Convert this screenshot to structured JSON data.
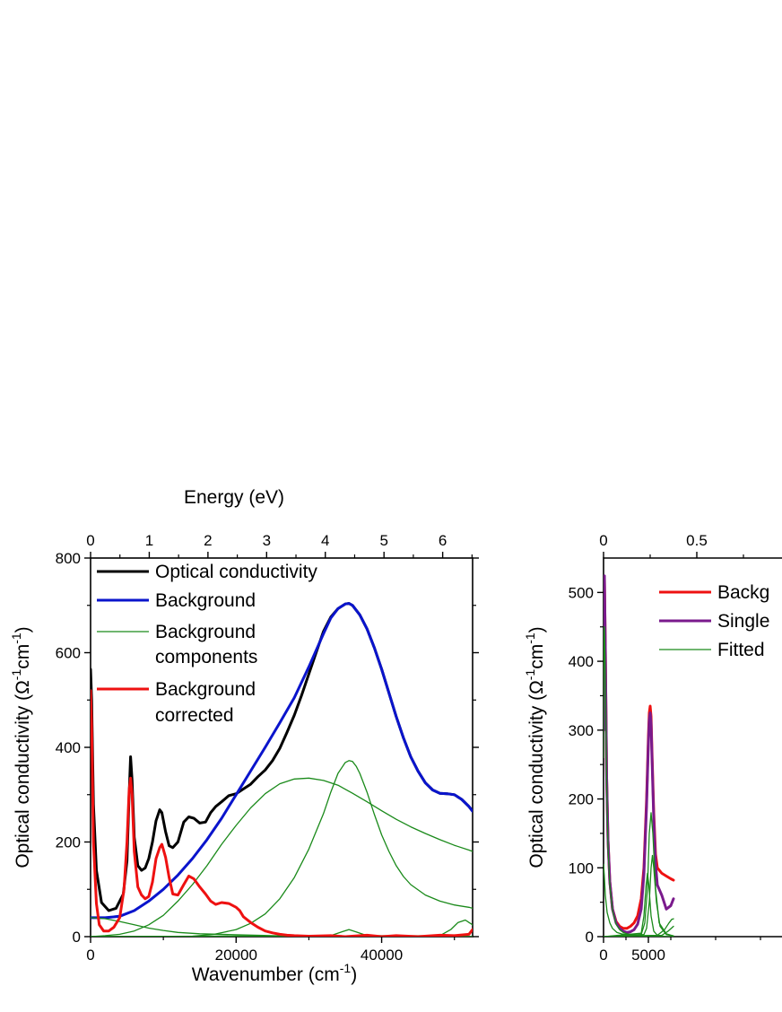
{
  "colors": {
    "optical": "#000000",
    "background": "#0a14cc",
    "components": "#1a8a1a",
    "corrected": "#ee1111",
    "single": "#7a1a8c"
  },
  "chart_data": [
    {
      "type": "line",
      "panel": "left",
      "xlabel": "Wavenumber (cm",
      "xlabel_sup": "-1",
      "xlabel_close": ")",
      "top_xlabel": "Energy (eV)",
      "ylabel": "Optical conductivity (Ω",
      "ylabel_sup1": "-1",
      "ylabel_mid": "cm",
      "ylabel_sup2": "-1",
      "ylabel_close": ")",
      "xlim": [
        0,
        52500
      ],
      "ylim": [
        0,
        800
      ],
      "top_xlim_eV": [
        0,
        6.51
      ],
      "x_ticks": [
        "0",
        "20000",
        "40000"
      ],
      "y_ticks": [
        "0",
        "200",
        "400",
        "600",
        "800"
      ],
      "top_x_ticks": [
        "0",
        "1",
        "2",
        "3",
        "4",
        "5",
        "6"
      ],
      "grid": false,
      "legend_position": "top-left",
      "legend": [
        {
          "label": "Optical conductivity",
          "color": "#000000",
          "width": "thick"
        },
        {
          "label": "Background",
          "color": "#0a14cc",
          "width": "thick"
        },
        {
          "label": "Background",
          "label2": "components",
          "color": "#1a8a1a",
          "width": "thin"
        },
        {
          "label": "Background",
          "label2": "corrected",
          "color": "#ee1111",
          "width": "thick"
        }
      ],
      "series": [
        {
          "name": "Optical conductivity",
          "color": "#000000",
          "width": 3,
          "x": [
            0,
            150,
            400,
            800,
            1500,
            2500,
            3500,
            4500,
            5000,
            5300,
            5500,
            5700,
            6000,
            6500,
            7000,
            7500,
            8000,
            8500,
            9000,
            9500,
            9800,
            10300,
            10800,
            11300,
            12000,
            12800,
            13500,
            14200,
            15000,
            15800,
            16500,
            17200,
            18000,
            19000,
            20000,
            21000,
            22000,
            23000,
            24000,
            25000,
            26000,
            27000,
            28000,
            29000,
            30000,
            31000,
            32000,
            33000,
            34000,
            35000,
            35500,
            36000,
            37000,
            38000,
            39000,
            40000,
            41000,
            42000,
            43000,
            44000,
            45000,
            46000,
            47000,
            48000,
            49000,
            50000,
            51000,
            52000,
            52500
          ],
          "y": [
            565,
            500,
            280,
            140,
            72,
            55,
            60,
            90,
            160,
            300,
            380,
            330,
            210,
            150,
            140,
            145,
            165,
            200,
            245,
            268,
            262,
            222,
            192,
            188,
            200,
            242,
            253,
            250,
            240,
            242,
            262,
            275,
            285,
            298,
            302,
            312,
            322,
            338,
            352,
            372,
            398,
            432,
            468,
            510,
            555,
            600,
            645,
            675,
            693,
            703,
            704,
            700,
            680,
            650,
            610,
            565,
            515,
            465,
            420,
            380,
            350,
            325,
            310,
            303,
            302,
            300,
            290,
            275,
            265
          ]
        },
        {
          "name": "Background",
          "color": "#0a14cc",
          "width": 3,
          "x": [
            0,
            2000,
            4000,
            6000,
            8000,
            10000,
            12000,
            14000,
            16000,
            18000,
            20000,
            22000,
            24000,
            26000,
            28000,
            30000,
            32000,
            33000,
            34000,
            35000,
            35500,
            36000,
            37000,
            38000,
            39000,
            40000,
            41000,
            42000,
            43000,
            44000,
            45000,
            46000,
            47000,
            48000,
            49000,
            50000,
            51000,
            52000,
            52500
          ],
          "y": [
            40,
            40,
            43,
            55,
            75,
            100,
            130,
            165,
            205,
            250,
            300,
            350,
            400,
            452,
            505,
            570,
            640,
            673,
            693,
            703,
            704,
            700,
            680,
            650,
            610,
            565,
            515,
            465,
            420,
            380,
            350,
            325,
            310,
            303,
            302,
            300,
            290,
            275,
            265
          ]
        },
        {
          "name": "Background",
          "color": "#1a8a1a",
          "width": 1.3,
          "x": [
            0,
            2000,
            4000,
            6000,
            8000,
            10000,
            12000,
            14000,
            16000,
            18000,
            20000,
            22000,
            24000,
            26000,
            28000,
            30000,
            32000,
            34000,
            36000,
            38000,
            40000,
            42000,
            44000,
            46000,
            48000,
            50000,
            52000,
            52500
          ],
          "y": [
            0,
            2,
            5,
            12,
            25,
            45,
            75,
            110,
            150,
            195,
            235,
            272,
            302,
            323,
            333,
            335,
            330,
            320,
            303,
            285,
            266,
            248,
            232,
            218,
            205,
            193,
            183,
            180
          ]
        },
        {
          "name": "Background",
          "color": "#1a8a1a",
          "width": 1.3,
          "x": [
            0,
            14000,
            17000,
            20000,
            22000,
            24000,
            26000,
            28000,
            30000,
            32000,
            33000,
            34000,
            35000,
            35500,
            36000,
            36500,
            37000,
            38000,
            39000,
            40000,
            41000,
            42000,
            43000,
            44000,
            46000,
            48000,
            50000,
            52000,
            52500
          ],
          "y": [
            0,
            1,
            5,
            15,
            28,
            48,
            80,
            125,
            185,
            260,
            305,
            345,
            368,
            372,
            370,
            360,
            345,
            305,
            258,
            215,
            180,
            150,
            127,
            110,
            88,
            75,
            67,
            62,
            60
          ]
        },
        {
          "name": "Background",
          "color": "#1a8a1a",
          "width": 1.3,
          "x": [
            0,
            2000,
            4000,
            6000,
            8000,
            10000,
            12000,
            15000,
            20000,
            25000,
            30000,
            35000,
            40000,
            45000,
            52500
          ],
          "y": [
            40,
            38,
            32,
            25,
            18,
            13,
            9,
            6,
            4,
            2,
            1,
            1,
            0,
            0,
            0
          ]
        },
        {
          "name": "Background",
          "color": "#1a8a1a",
          "width": 1.3,
          "x": [
            0,
            33000,
            34500,
            35500,
            36500,
            38000,
            52500
          ],
          "y": [
            0,
            2,
            10,
            15,
            10,
            2,
            0
          ]
        },
        {
          "name": "Background",
          "color": "#1a8a1a",
          "width": 1.3,
          "x": [
            0,
            48000,
            49500,
            50500,
            51500,
            52000,
            52500
          ],
          "y": [
            0,
            2,
            15,
            30,
            35,
            30,
            25
          ]
        },
        {
          "name": "Background",
          "color": "#ee1111",
          "width": 3,
          "x": [
            0,
            150,
            400,
            800,
            1200,
            1800,
            2500,
            3200,
            4000,
            4600,
            5000,
            5300,
            5500,
            5700,
            6000,
            6500,
            7000,
            7500,
            8000,
            8500,
            9000,
            9500,
            9800,
            10300,
            10800,
            11300,
            12000,
            12800,
            13500,
            14200,
            15000,
            15800,
            16500,
            17200,
            18000,
            19000,
            20000,
            20500,
            21000,
            22000,
            23000,
            24000,
            25000,
            26000,
            27000,
            28000,
            30000,
            33000,
            35000,
            38000,
            40000,
            42000,
            45000,
            48000,
            50000,
            52000,
            52500
          ],
          "y": [
            520,
            450,
            200,
            70,
            25,
            12,
            12,
            20,
            40,
            100,
            200,
            310,
            335,
            300,
            180,
            105,
            88,
            80,
            85,
            115,
            165,
            188,
            195,
            168,
            125,
            90,
            88,
            110,
            128,
            122,
            105,
            90,
            75,
            68,
            72,
            70,
            62,
            55,
            42,
            30,
            20,
            12,
            8,
            5,
            3,
            2,
            1,
            2,
            0,
            3,
            0,
            2,
            0,
            3,
            2,
            5,
            15
          ]
        }
      ]
    },
    {
      "type": "line",
      "panel": "right",
      "xlabel": "",
      "ylabel": "Optical conductivity (Ω",
      "ylabel_sup1": "-1",
      "ylabel_mid": "cm",
      "ylabel_sup2": "-1",
      "ylabel_close": ")",
      "xlim": [
        0,
        20000
      ],
      "ylim": [
        0,
        550
      ],
      "x_ticks": [
        "0",
        "5000"
      ],
      "y_ticks": [
        "0",
        "100",
        "200",
        "300",
        "400",
        "500"
      ],
      "top_x_ticks": [
        "0",
        "0.5"
      ],
      "grid": false,
      "legend_position": "top-right",
      "legend": [
        {
          "label": "Backg",
          "color": "#ee1111",
          "width": "thick"
        },
        {
          "label": "Single",
          "color": "#7a1a8c",
          "width": "thick"
        },
        {
          "label": "Fitted",
          "color": "#1a8a1a",
          "width": "thin"
        }
      ],
      "series": [
        {
          "name": "Backg",
          "color": "#ee1111",
          "width": 3,
          "x": [
            0,
            50,
            100,
            200,
            350,
            500,
            700,
            1000,
            1400,
            1800,
            2200,
            2600,
            3000,
            3400,
            3800,
            4200,
            4500,
            4800,
            5000,
            5100,
            5200,
            5300,
            5400,
            5600,
            5800,
            6000,
            6500,
            7000,
            7500,
            7800
          ],
          "y": [
            300,
            480,
            520,
            420,
            230,
            140,
            80,
            40,
            22,
            15,
            12,
            12,
            15,
            20,
            30,
            55,
            100,
            200,
            290,
            325,
            335,
            320,
            270,
            180,
            120,
            100,
            92,
            88,
            84,
            82
          ]
        },
        {
          "name": "Single",
          "color": "#7a1a8c",
          "width": 3,
          "x": [
            0,
            50,
            100,
            200,
            350,
            500,
            700,
            1000,
            1400,
            1800,
            2200,
            2600,
            3000,
            3400,
            3800,
            4200,
            4500,
            4800,
            5000,
            5100,
            5200,
            5300,
            5400,
            5600,
            5800,
            6000,
            6500,
            7000,
            7500,
            7800
          ],
          "y": [
            300,
            480,
            524,
            420,
            230,
            140,
            80,
            40,
            20,
            12,
            8,
            6,
            7,
            10,
            18,
            40,
            90,
            190,
            280,
            315,
            325,
            310,
            260,
            170,
            105,
            75,
            60,
            40,
            45,
            55
          ]
        },
        {
          "name": "Fitted",
          "color": "#1a8a1a",
          "width": 1.3,
          "x": [
            0,
            50,
            100,
            200,
            350,
            500,
            700,
            1000,
            1400,
            1800,
            2200,
            2600,
            3000,
            4000,
            6000,
            7800
          ],
          "y": [
            260,
            440,
            450,
            380,
            220,
            130,
            75,
            38,
            18,
            10,
            6,
            4,
            3,
            1,
            0,
            0
          ]
        },
        {
          "name": "Fitted",
          "color": "#1a8a1a",
          "width": 1.3,
          "x": [
            0,
            80,
            200,
            400,
            700,
            1000,
            1500,
            2000,
            3000,
            4000,
            6000,
            7800
          ],
          "y": [
            105,
            90,
            60,
            35,
            20,
            12,
            6,
            4,
            2,
            1,
            0,
            0
          ]
        },
        {
          "name": "Fitted",
          "color": "#1a8a1a",
          "width": 1.3,
          "x": [
            0,
            4200,
            4600,
            4900,
            5100,
            5300,
            5500,
            5800,
            6200,
            7000,
            7800
          ],
          "y": [
            0,
            3,
            20,
            70,
            150,
            180,
            150,
            70,
            20,
            4,
            1
          ]
        },
        {
          "name": "Fitted",
          "color": "#1a8a1a",
          "width": 1.3,
          "x": [
            0,
            4500,
            4800,
            5100,
            5300,
            5450,
            5600,
            5900,
            6300,
            7000,
            7800
          ],
          "y": [
            0,
            3,
            12,
            50,
            100,
            118,
            100,
            50,
            15,
            3,
            1
          ]
        },
        {
          "name": "Fitted",
          "color": "#1a8a1a",
          "width": 1.3,
          "x": [
            0,
            4200,
            4500,
            4750,
            4900,
            5050,
            5300,
            5600,
            6000,
            7000
          ],
          "y": [
            0,
            5,
            30,
            75,
            92,
            75,
            30,
            8,
            2,
            0
          ]
        },
        {
          "name": "Fitted",
          "color": "#1a8a1a",
          "width": 1.3,
          "x": [
            0,
            6000,
            6800,
            7300,
            7600,
            7800
          ],
          "y": [
            0,
            2,
            10,
            20,
            25,
            26
          ]
        },
        {
          "name": "Fitted",
          "color": "#1a8a1a",
          "width": 1.3,
          "x": [
            0,
            6500,
            7200,
            7800
          ],
          "y": [
            0,
            2,
            8,
            15
          ]
        }
      ]
    }
  ]
}
